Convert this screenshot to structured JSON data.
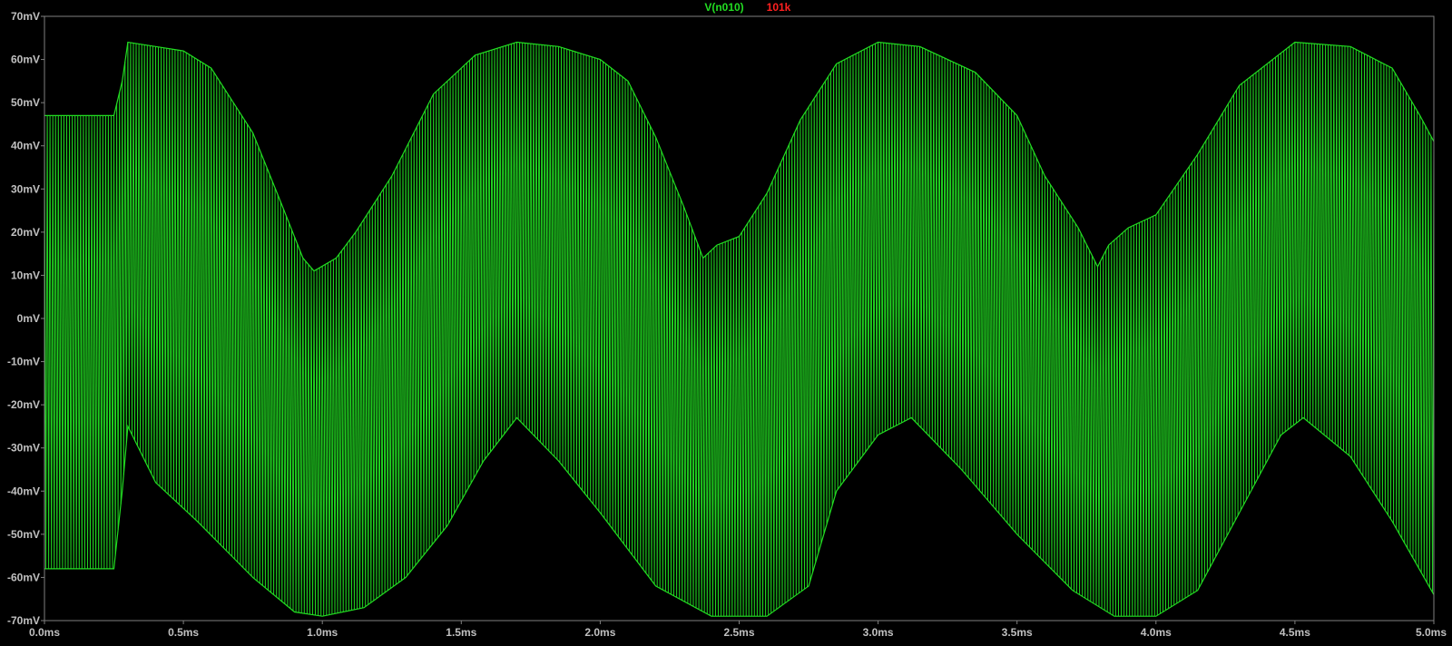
{
  "chart_data": {
    "type": "line",
    "title": "",
    "xlabel": "",
    "ylabel": "",
    "xlim": [
      0,
      5.0
    ],
    "ylim": [
      -70,
      70
    ],
    "grid": false,
    "background": "#000000",
    "axis_color": "#808080",
    "tick_label_color": "#c0c0c0",
    "x_ticks": [
      {
        "value": 0.0,
        "label": "0.0ms"
      },
      {
        "value": 0.5,
        "label": "0.5ms"
      },
      {
        "value": 1.0,
        "label": "1.0ms"
      },
      {
        "value": 1.5,
        "label": "1.5ms"
      },
      {
        "value": 2.0,
        "label": "2.0ms"
      },
      {
        "value": 2.5,
        "label": "2.5ms"
      },
      {
        "value": 3.0,
        "label": "3.0ms"
      },
      {
        "value": 3.5,
        "label": "3.5ms"
      },
      {
        "value": 4.0,
        "label": "4.0ms"
      },
      {
        "value": 4.5,
        "label": "4.5ms"
      },
      {
        "value": 5.0,
        "label": "5.0ms"
      }
    ],
    "y_ticks": [
      {
        "value": 70,
        "label": "70mV"
      },
      {
        "value": 60,
        "label": "60mV"
      },
      {
        "value": 50,
        "label": "50mV"
      },
      {
        "value": 40,
        "label": "40mV"
      },
      {
        "value": 30,
        "label": "30mV"
      },
      {
        "value": 20,
        "label": "20mV"
      },
      {
        "value": 10,
        "label": "10mV"
      },
      {
        "value": 0,
        "label": "0mV"
      },
      {
        "value": -10,
        "label": "-10mV"
      },
      {
        "value": -20,
        "label": "-20mV"
      },
      {
        "value": -30,
        "label": "-30mV"
      },
      {
        "value": -40,
        "label": "-40mV"
      },
      {
        "value": -50,
        "label": "-50mV"
      },
      {
        "value": -60,
        "label": "-60mV"
      },
      {
        "value": -70,
        "label": "-70mV"
      }
    ],
    "legend": [
      {
        "label": "V(n010)",
        "color": "#22dd22"
      },
      {
        "label": "101k",
        "color": "#ff2020"
      }
    ],
    "series": [
      {
        "name": "V(n010)",
        "color": "#22dd22",
        "carrier_period_ms": 0.01,
        "upper_envelope": [
          [
            0.0,
            47
          ],
          [
            0.25,
            47
          ],
          [
            0.28,
            55
          ],
          [
            0.3,
            64
          ],
          [
            0.4,
            63
          ],
          [
            0.5,
            62
          ],
          [
            0.6,
            58
          ],
          [
            0.75,
            43
          ],
          [
            0.85,
            27
          ],
          [
            0.93,
            14
          ],
          [
            0.97,
            11
          ],
          [
            1.05,
            14
          ],
          [
            1.12,
            20
          ],
          [
            1.25,
            33
          ],
          [
            1.4,
            52
          ],
          [
            1.55,
            61
          ],
          [
            1.7,
            64
          ],
          [
            1.85,
            63
          ],
          [
            2.0,
            60
          ],
          [
            2.1,
            55
          ],
          [
            2.2,
            42
          ],
          [
            2.3,
            26
          ],
          [
            2.37,
            14
          ],
          [
            2.42,
            17
          ],
          [
            2.5,
            19
          ],
          [
            2.6,
            29
          ],
          [
            2.72,
            46
          ],
          [
            2.85,
            59
          ],
          [
            3.0,
            64
          ],
          [
            3.15,
            63
          ],
          [
            3.35,
            57
          ],
          [
            3.5,
            47
          ],
          [
            3.6,
            33
          ],
          [
            3.72,
            21
          ],
          [
            3.79,
            12
          ],
          [
            3.83,
            17
          ],
          [
            3.9,
            21
          ],
          [
            4.0,
            24
          ],
          [
            4.15,
            38
          ],
          [
            4.3,
            54
          ],
          [
            4.5,
            64
          ],
          [
            4.7,
            63
          ],
          [
            4.85,
            58
          ],
          [
            4.95,
            47
          ],
          [
            5.0,
            41
          ]
        ],
        "lower_envelope": [
          [
            0.0,
            -58
          ],
          [
            0.25,
            -58
          ],
          [
            0.28,
            -40
          ],
          [
            0.3,
            -25
          ],
          [
            0.4,
            -38
          ],
          [
            0.55,
            -47
          ],
          [
            0.75,
            -60
          ],
          [
            0.9,
            -68
          ],
          [
            1.0,
            -69
          ],
          [
            1.15,
            -67
          ],
          [
            1.3,
            -60
          ],
          [
            1.45,
            -48
          ],
          [
            1.58,
            -33
          ],
          [
            1.7,
            -23
          ],
          [
            1.85,
            -33
          ],
          [
            2.0,
            -45
          ],
          [
            2.2,
            -62
          ],
          [
            2.4,
            -69
          ],
          [
            2.6,
            -69
          ],
          [
            2.75,
            -62
          ],
          [
            2.85,
            -40
          ],
          [
            3.0,
            -27
          ],
          [
            3.12,
            -23
          ],
          [
            3.3,
            -35
          ],
          [
            3.5,
            -50
          ],
          [
            3.7,
            -63
          ],
          [
            3.85,
            -69
          ],
          [
            4.0,
            -69
          ],
          [
            4.15,
            -63
          ],
          [
            4.3,
            -45
          ],
          [
            4.45,
            -27
          ],
          [
            4.53,
            -23
          ],
          [
            4.7,
            -32
          ],
          [
            4.85,
            -47
          ],
          [
            5.0,
            -64
          ]
        ]
      }
    ]
  }
}
